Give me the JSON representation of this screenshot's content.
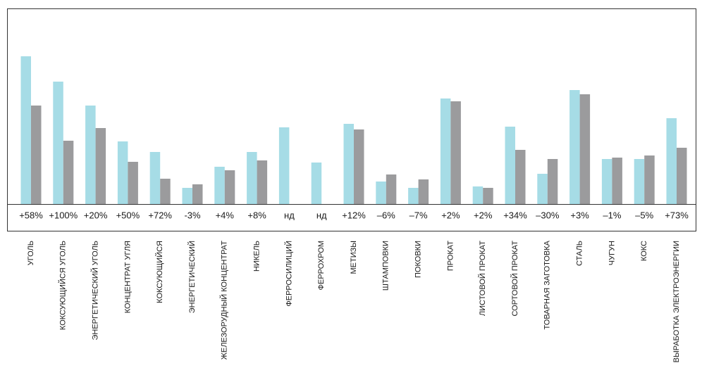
{
  "chart_data": {
    "type": "bar",
    "categories": [
      "УГОЛЬ",
      "КОКСУЮЩИЙСЯ УГОЛЬ",
      "ЭНЕРГЕТИЧЕСКИЙ УГОЛЬ",
      "КОНЦЕНТРАТ УГЛЯ",
      "КОКСУЮЩИЙСЯ",
      "ЭНЕРГЕТИЧЕСКИЙ",
      "ЖЕЛЕЗОРУДНЫЙ КОНЦЕНТРАТ",
      "НИКЕЛЬ",
      "ФЕРРОСИЛИЦИЙ",
      "ФЕРРОХРОМ",
      "МЕТИЗЫ",
      "ШТАМПОВКИ",
      "ПОКОВКИ",
      "ПРОКАТ",
      "ЛИСТОВОЙ ПРОКАТ",
      "СОРТОВОЙ ПРОКАТ",
      "ТОВАРНАЯ ЗАГОТОВКА",
      "СТАЛЬ",
      "ЧУГУН",
      "КОКС",
      "ВЫРАБОТКА ЭЛЕКТРОЭНЕРГИИ"
    ],
    "change_labels": [
      "+58%",
      "+100%",
      "+20%",
      "+50%",
      "+72%",
      "-3%",
      "+4%",
      "+8%",
      "нд",
      "нд",
      "+12%",
      "–6%",
      "–7%",
      "+2%",
      "+2%",
      "+34%",
      "–30%",
      "+3%",
      "–1%",
      "–5%",
      "+73%"
    ],
    "series": [
      {
        "color": "#a6dce6",
        "values": [
          210,
          174,
          140,
          89,
          74,
          23,
          53,
          74,
          109,
          59,
          114,
          32,
          23,
          150,
          25,
          110,
          43,
          162,
          64,
          64,
          122
        ]
      },
      {
        "color": "#9b9b9d",
        "values": [
          140,
          90,
          108,
          60,
          36,
          28,
          48,
          62,
          null,
          null,
          106,
          42,
          35,
          146,
          23,
          77,
          64,
          156,
          66,
          69,
          80
        ]
      }
    ]
  }
}
